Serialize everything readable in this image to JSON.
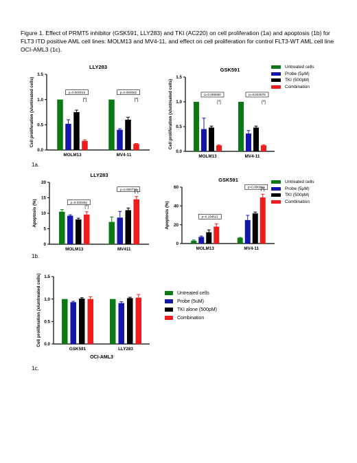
{
  "caption": "Figure 1. Effect of PRMT5 inhibitor (GSK591, LLY283) and TKI (AC220) on cell proliferation (1a) and apoptosis (1b) for FLT3 ITD positive AML cell lines: MOLM13 and MV4-11, and effect on cell proliferation for control FLT3-WT AML cell line OCI-AML3 (1c).",
  "panel_labels": {
    "a": "1a.",
    "b": "1b.",
    "c": "1c."
  },
  "colors": {
    "untreated": "#0b7a14",
    "probe": "#1316a8",
    "tki": "#000000",
    "combination": "#ee1c1c"
  },
  "legend_ab": [
    "Untreated cells",
    "Probe (5µM)",
    "TKI (500pM)",
    "Combination"
  ],
  "legend_c": [
    "Untreated cells",
    "Probe (5uM)",
    "TKI alone (500pM)",
    "Combination"
  ],
  "chart_data": [
    {
      "id": "1a-LLY283",
      "type": "bar",
      "title": "LLY283",
      "ylabel": "Cell proliferation (x/untreated cells)",
      "ylim": [
        0,
        1.5
      ],
      "yticks": [
        "0.0",
        "0.5",
        "1.0",
        "1.5"
      ],
      "categories": [
        "MOLM13",
        "MV4-11"
      ],
      "series": [
        {
          "name": "Untreated cells",
          "values": [
            1.0,
            1.0
          ],
          "errors": [
            0,
            0
          ]
        },
        {
          "name": "Probe (5µM)",
          "values": [
            0.52,
            0.4
          ],
          "errors": [
            0.08,
            0.02
          ]
        },
        {
          "name": "TKI (500pM)",
          "values": [
            0.75,
            0.6
          ],
          "errors": [
            0.04,
            0.05
          ]
        },
        {
          "name": "Combination",
          "values": [
            0.18,
            0.12
          ],
          "errors": [
            0.02,
            0.01
          ]
        }
      ],
      "pvalues": [
        "p=0.000013",
        "p=0.000082"
      ],
      "annotations": [
        "[*]",
        "[*]"
      ]
    },
    {
      "id": "1a-GSK591",
      "type": "bar",
      "title": "GSK591",
      "ylabel": "Cell proliferation (x/untreated cells)",
      "ylim": [
        0,
        1.5
      ],
      "yticks": [
        "0.0",
        "0.5",
        "1.0",
        "1.5"
      ],
      "categories": [
        "MOLM13",
        "MV4-11"
      ],
      "series": [
        {
          "name": "Untreated cells",
          "values": [
            1.0,
            1.0
          ],
          "errors": [
            0,
            0
          ]
        },
        {
          "name": "Probe (5µM)",
          "values": [
            0.45,
            0.36
          ],
          "errors": [
            0.22,
            0.06
          ]
        },
        {
          "name": "TKI (500pM)",
          "values": [
            0.48,
            0.48
          ],
          "errors": [
            0.03,
            0.03
          ]
        },
        {
          "name": "Combination",
          "values": [
            0.12,
            0.12
          ],
          "errors": [
            0.01,
            0.01
          ]
        }
      ],
      "pvalues": [
        "p=0.006060",
        "p=0.032978"
      ],
      "annotations": [
        "[*]",
        "[*]"
      ]
    },
    {
      "id": "1b-LLY283",
      "type": "bar",
      "title": "LLY283",
      "ylabel": "Apoptosis (%)",
      "ylim": [
        0,
        20
      ],
      "yticks": [
        "0",
        "5",
        "10",
        "15",
        "20"
      ],
      "categories": [
        "MOLM13",
        "MV411"
      ],
      "series": [
        {
          "name": "Untreated cells",
          "values": [
            10.5,
            7.2
          ],
          "errors": [
            0.7,
            1.6
          ]
        },
        {
          "name": "Probe (5µM)",
          "values": [
            9.2,
            8.6
          ],
          "errors": [
            0.3,
            2.0
          ]
        },
        {
          "name": "TKI (500pM)",
          "values": [
            8.0,
            11.0
          ],
          "errors": [
            0.4,
            0.7
          ]
        },
        {
          "name": "Combination",
          "values": [
            9.6,
            14.5
          ],
          "errors": [
            0.9,
            0.9
          ]
        }
      ],
      "pvalues": [
        "p=0.030292",
        "p=0.000712"
      ],
      "annotations": [
        "[*]",
        "[*]"
      ]
    },
    {
      "id": "1b-GSK591",
      "type": "bar",
      "title": "GSK591",
      "ylabel": "Apoptosis (%)",
      "ylim": [
        0,
        60
      ],
      "yticks": [
        "0",
        "20",
        "40",
        "60"
      ],
      "categories": [
        "MOLM13",
        "MV4-11"
      ],
      "series": [
        {
          "name": "Untreated cells",
          "values": [
            3,
            6
          ],
          "errors": [
            0.8,
            0.5
          ]
        },
        {
          "name": "Probe (5µM)",
          "values": [
            7,
            25
          ],
          "errors": [
            1.0,
            5.0
          ]
        },
        {
          "name": "TKI (500pM)",
          "values": [
            12,
            32
          ],
          "errors": [
            2.5,
            1.5
          ]
        },
        {
          "name": "Combination",
          "values": [
            18,
            49
          ],
          "errors": [
            3.0,
            3.5
          ]
        }
      ],
      "pvalues": [
        "p=0.194621",
        "p=0.000061"
      ],
      "annotations": [
        "",
        "[*]"
      ]
    },
    {
      "id": "1c-OCI-AML3",
      "type": "bar",
      "title": "",
      "ylabel": "Cell proliferation (x/untreated cells)",
      "xlabel": "OCI-AML3",
      "ylim": [
        0,
        1.5
      ],
      "yticks": [
        "0.0",
        "0.5",
        "1.0",
        "1.5"
      ],
      "categories": [
        "GSK591",
        "LLY283"
      ],
      "series": [
        {
          "name": "Untreated cells",
          "values": [
            1.0,
            1.0
          ],
          "errors": [
            0,
            0
          ]
        },
        {
          "name": "Probe (5uM)",
          "values": [
            0.93,
            0.91
          ],
          "errors": [
            0.02,
            0.03
          ]
        },
        {
          "name": "TKI alone (500pM)",
          "values": [
            1.01,
            1.02
          ],
          "errors": [
            0.02,
            0.02
          ]
        },
        {
          "name": "Combination",
          "values": [
            1.0,
            1.03
          ],
          "errors": [
            0.05,
            0.07
          ]
        }
      ],
      "pvalues": [
        "",
        ""
      ],
      "annotations": [
        "",
        ""
      ]
    }
  ]
}
